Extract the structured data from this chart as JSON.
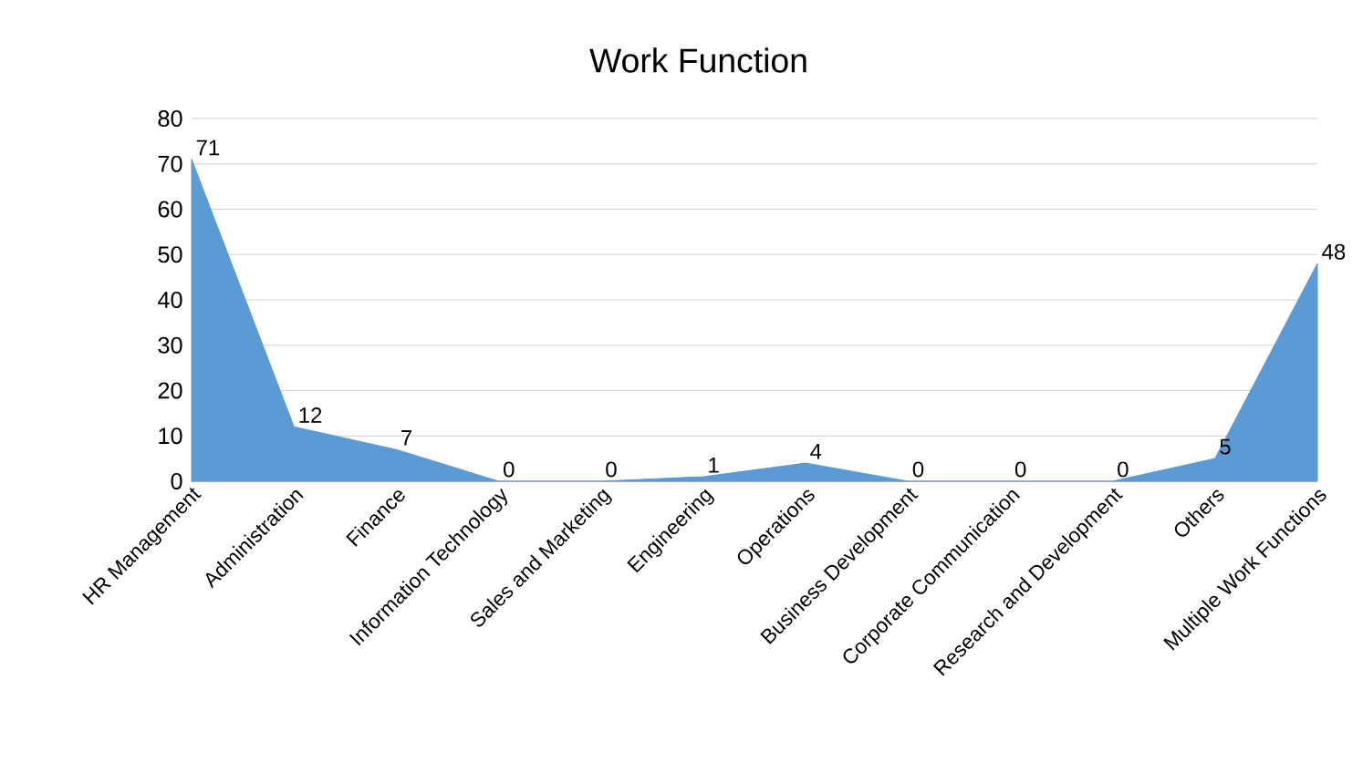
{
  "chart_data": {
    "type": "area",
    "title": "Work Function",
    "categories": [
      "HR Management",
      "Administration",
      "Finance",
      "Information Technology",
      "Sales and Marketing",
      "Engineering",
      "Operations",
      "Business Development",
      "Corporate Communication",
      "Research and Development",
      "Others",
      "Multiple Work Functions"
    ],
    "values": [
      71,
      12,
      7,
      0,
      0,
      1,
      4,
      0,
      0,
      0,
      5,
      48
    ],
    "color": "#5b9bd5",
    "ylim": [
      0,
      80
    ],
    "yticks": [
      0,
      10,
      20,
      30,
      40,
      50,
      60,
      70,
      80
    ],
    "grid": "y",
    "data_labels": true
  }
}
